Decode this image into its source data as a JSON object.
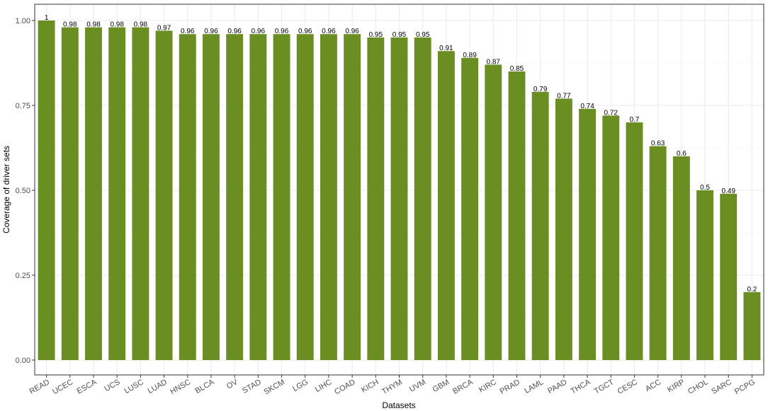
{
  "chart_data": {
    "type": "bar",
    "title": "",
    "xlabel": "Datasets",
    "ylabel": "Coverage of driver sets",
    "ylim": [
      0,
      1.0
    ],
    "yticks": [
      "0.00",
      "0.25",
      "0.50",
      "0.75",
      "1.00"
    ],
    "ytick_values": [
      0,
      0.25,
      0.5,
      0.75,
      1.0
    ],
    "grid": true,
    "bar_color": "#6b8e23",
    "categories": [
      "READ",
      "UCEC",
      "ESCA",
      "UCS",
      "LUSC",
      "LUAD",
      "HNSC",
      "BLCA",
      "OV",
      "STAD",
      "SKCM",
      "LGG",
      "LIHC",
      "COAD",
      "KICH",
      "THYM",
      "UVM",
      "GBM",
      "BRCA",
      "KIRC",
      "PRAD",
      "LAML",
      "PAAD",
      "THCA",
      "TGCT",
      "CESC",
      "ACC",
      "KIRP",
      "CHOL",
      "SARC",
      "PCPG"
    ],
    "values": [
      1,
      0.98,
      0.98,
      0.98,
      0.98,
      0.97,
      0.96,
      0.96,
      0.96,
      0.96,
      0.96,
      0.96,
      0.96,
      0.96,
      0.95,
      0.95,
      0.95,
      0.91,
      0.89,
      0.87,
      0.85,
      0.79,
      0.77,
      0.74,
      0.72,
      0.7,
      0.63,
      0.6,
      0.5,
      0.49,
      0.2
    ],
    "value_labels": [
      "1",
      "0.98",
      "0.98",
      "0.98",
      "0.98",
      "0.97",
      "0.96",
      "0.96",
      "0.96",
      "0.96",
      "0.96",
      "0.96",
      "0.96",
      "0.96",
      "0.95",
      "0.95",
      "0.95",
      "0.91",
      "0.89",
      "0.87",
      "0.85",
      "0.79",
      "0.77",
      "0.74",
      "0.72",
      "0.7",
      "0.63",
      "0.6",
      "0.5",
      "0.49",
      "0.2"
    ]
  }
}
